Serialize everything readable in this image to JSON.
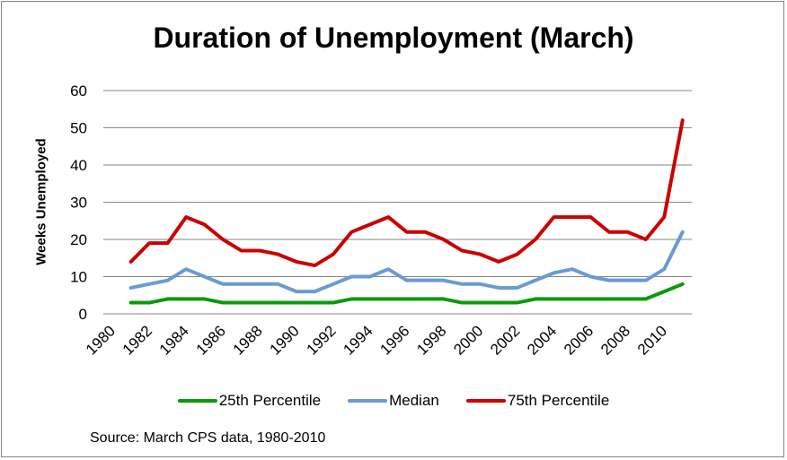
{
  "chart_data": {
    "type": "line",
    "title": "Duration of Unemployment  (March)",
    "xlabel": "",
    "ylabel": "Weeks Unemployed",
    "ylim": [
      0,
      60
    ],
    "yticks": [
      0,
      10,
      20,
      30,
      40,
      50,
      60
    ],
    "grid": true,
    "legend_position": "bottom",
    "x": [
      1980,
      1981,
      1982,
      1983,
      1984,
      1985,
      1986,
      1987,
      1988,
      1989,
      1990,
      1991,
      1992,
      1993,
      1994,
      1995,
      1996,
      1997,
      1998,
      1999,
      2000,
      2001,
      2002,
      2003,
      2004,
      2005,
      2006,
      2007,
      2008,
      2009,
      2010,
      2011
    ],
    "xtick_labels": [
      "1980",
      "1982",
      "1984",
      "1986",
      "1988",
      "1990",
      "1992",
      "1994",
      "1996",
      "1998",
      "2000",
      "2002",
      "2004",
      "2006",
      "2008",
      "2010"
    ],
    "series": [
      {
        "name": "25th Percentile",
        "color": "#0a9a0a",
        "values": [
          null,
          3,
          3,
          4,
          4,
          4,
          3,
          3,
          3,
          3,
          3,
          3,
          3,
          4,
          4,
          4,
          4,
          4,
          4,
          3,
          3,
          3,
          3,
          4,
          4,
          4,
          4,
          4,
          4,
          4,
          6,
          8
        ]
      },
      {
        "name": "Median",
        "color": "#6a9bd3",
        "values": [
          null,
          7,
          8,
          9,
          12,
          10,
          8,
          8,
          8,
          8,
          6,
          6,
          8,
          10,
          10,
          12,
          9,
          9,
          9,
          8,
          8,
          7,
          7,
          9,
          11,
          12,
          10,
          9,
          9,
          9,
          12,
          22
        ]
      },
      {
        "name": "75th Percentile",
        "color": "#cc0000",
        "values": [
          null,
          14,
          19,
          19,
          26,
          24,
          20,
          17,
          17,
          16,
          14,
          13,
          16,
          22,
          24,
          26,
          22,
          22,
          20,
          17,
          16,
          14,
          16,
          20,
          26,
          26,
          26,
          22,
          22,
          20,
          26,
          52
        ]
      }
    ],
    "source": "Source: March CPS data, 1980-2010"
  }
}
